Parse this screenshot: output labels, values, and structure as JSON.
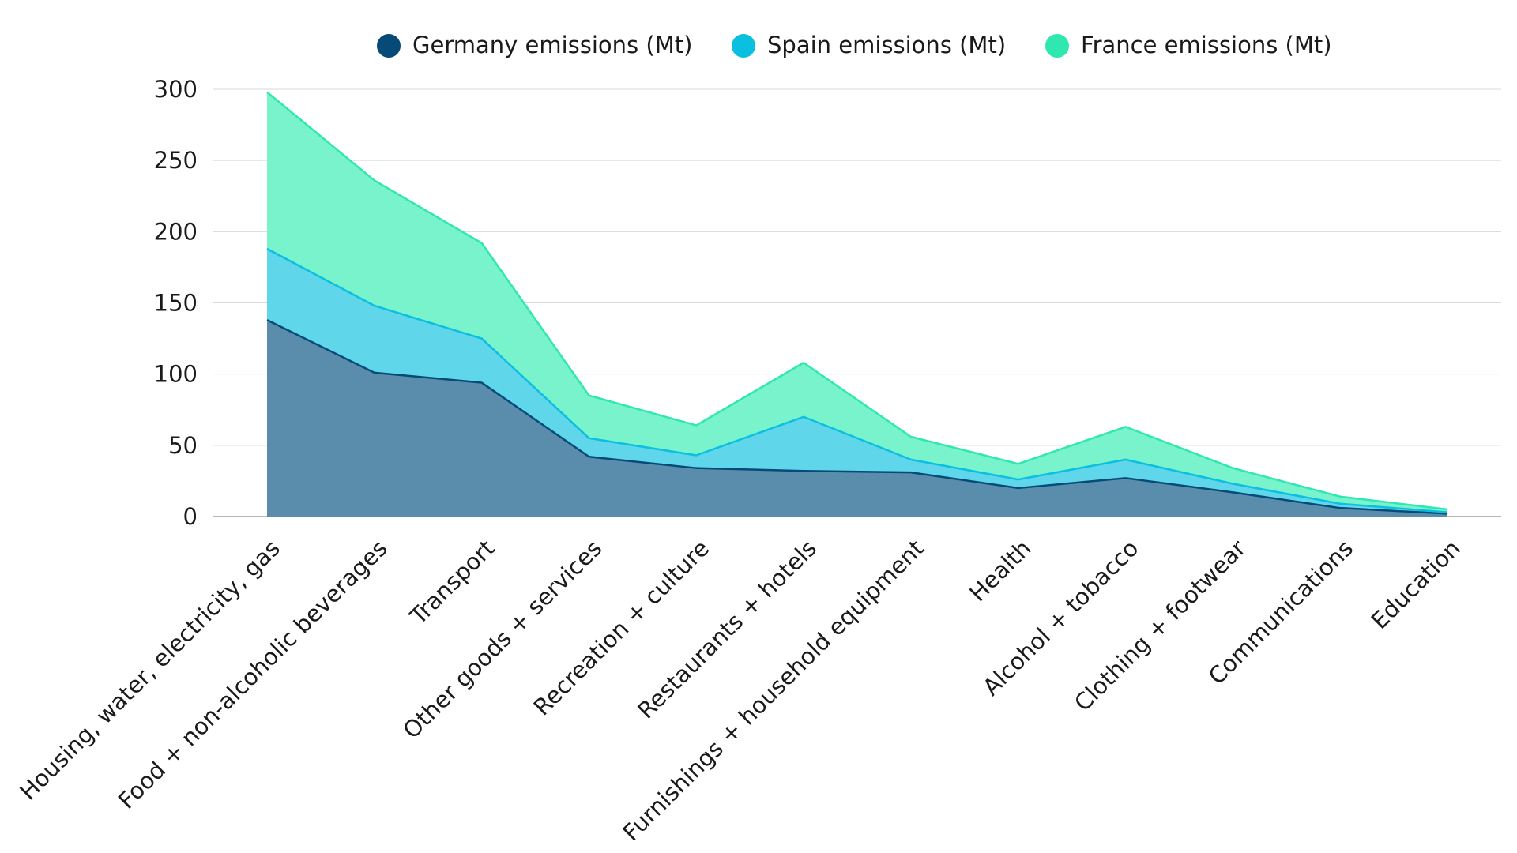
{
  "chart_data": {
    "type": "area",
    "stacked": true,
    "categories": [
      "Housing, water, electricity, gas",
      "Food + non-alcoholic beverages",
      "Transport",
      "Other goods + services",
      "Recreation + culture",
      "Restaurants + hotels",
      "Furnishings + household equipment",
      "Health",
      "Alcohol + tobacco",
      "Clothing + footwear",
      "Communications",
      "Education"
    ],
    "series": [
      {
        "name": "Germany emissions (Mt)",
        "color": "#064a78",
        "fill": "#5a8dab",
        "values": [
          138,
          101,
          94,
          42,
          34,
          32,
          31,
          20,
          27,
          17,
          6,
          2
        ]
      },
      {
        "name": "Spain emissions (Mt)",
        "color": "#0bbfe0",
        "fill": "#5fd6ea",
        "values": [
          50,
          47,
          31,
          13,
          9,
          38,
          9,
          6,
          13,
          6,
          3,
          1
        ]
      },
      {
        "name": "France emissions (Mt)",
        "color": "#2ee8b0",
        "fill": "#78f3cc",
        "values": [
          110,
          88,
          67,
          30,
          21,
          38,
          16,
          11,
          23,
          11,
          5,
          2
        ]
      }
    ],
    "yticks": [
      0,
      50,
      100,
      150,
      200,
      250,
      300
    ],
    "ylim": [
      0,
      300
    ],
    "xlabel": "",
    "ylabel": "",
    "grid": true,
    "legend": "top-center"
  }
}
